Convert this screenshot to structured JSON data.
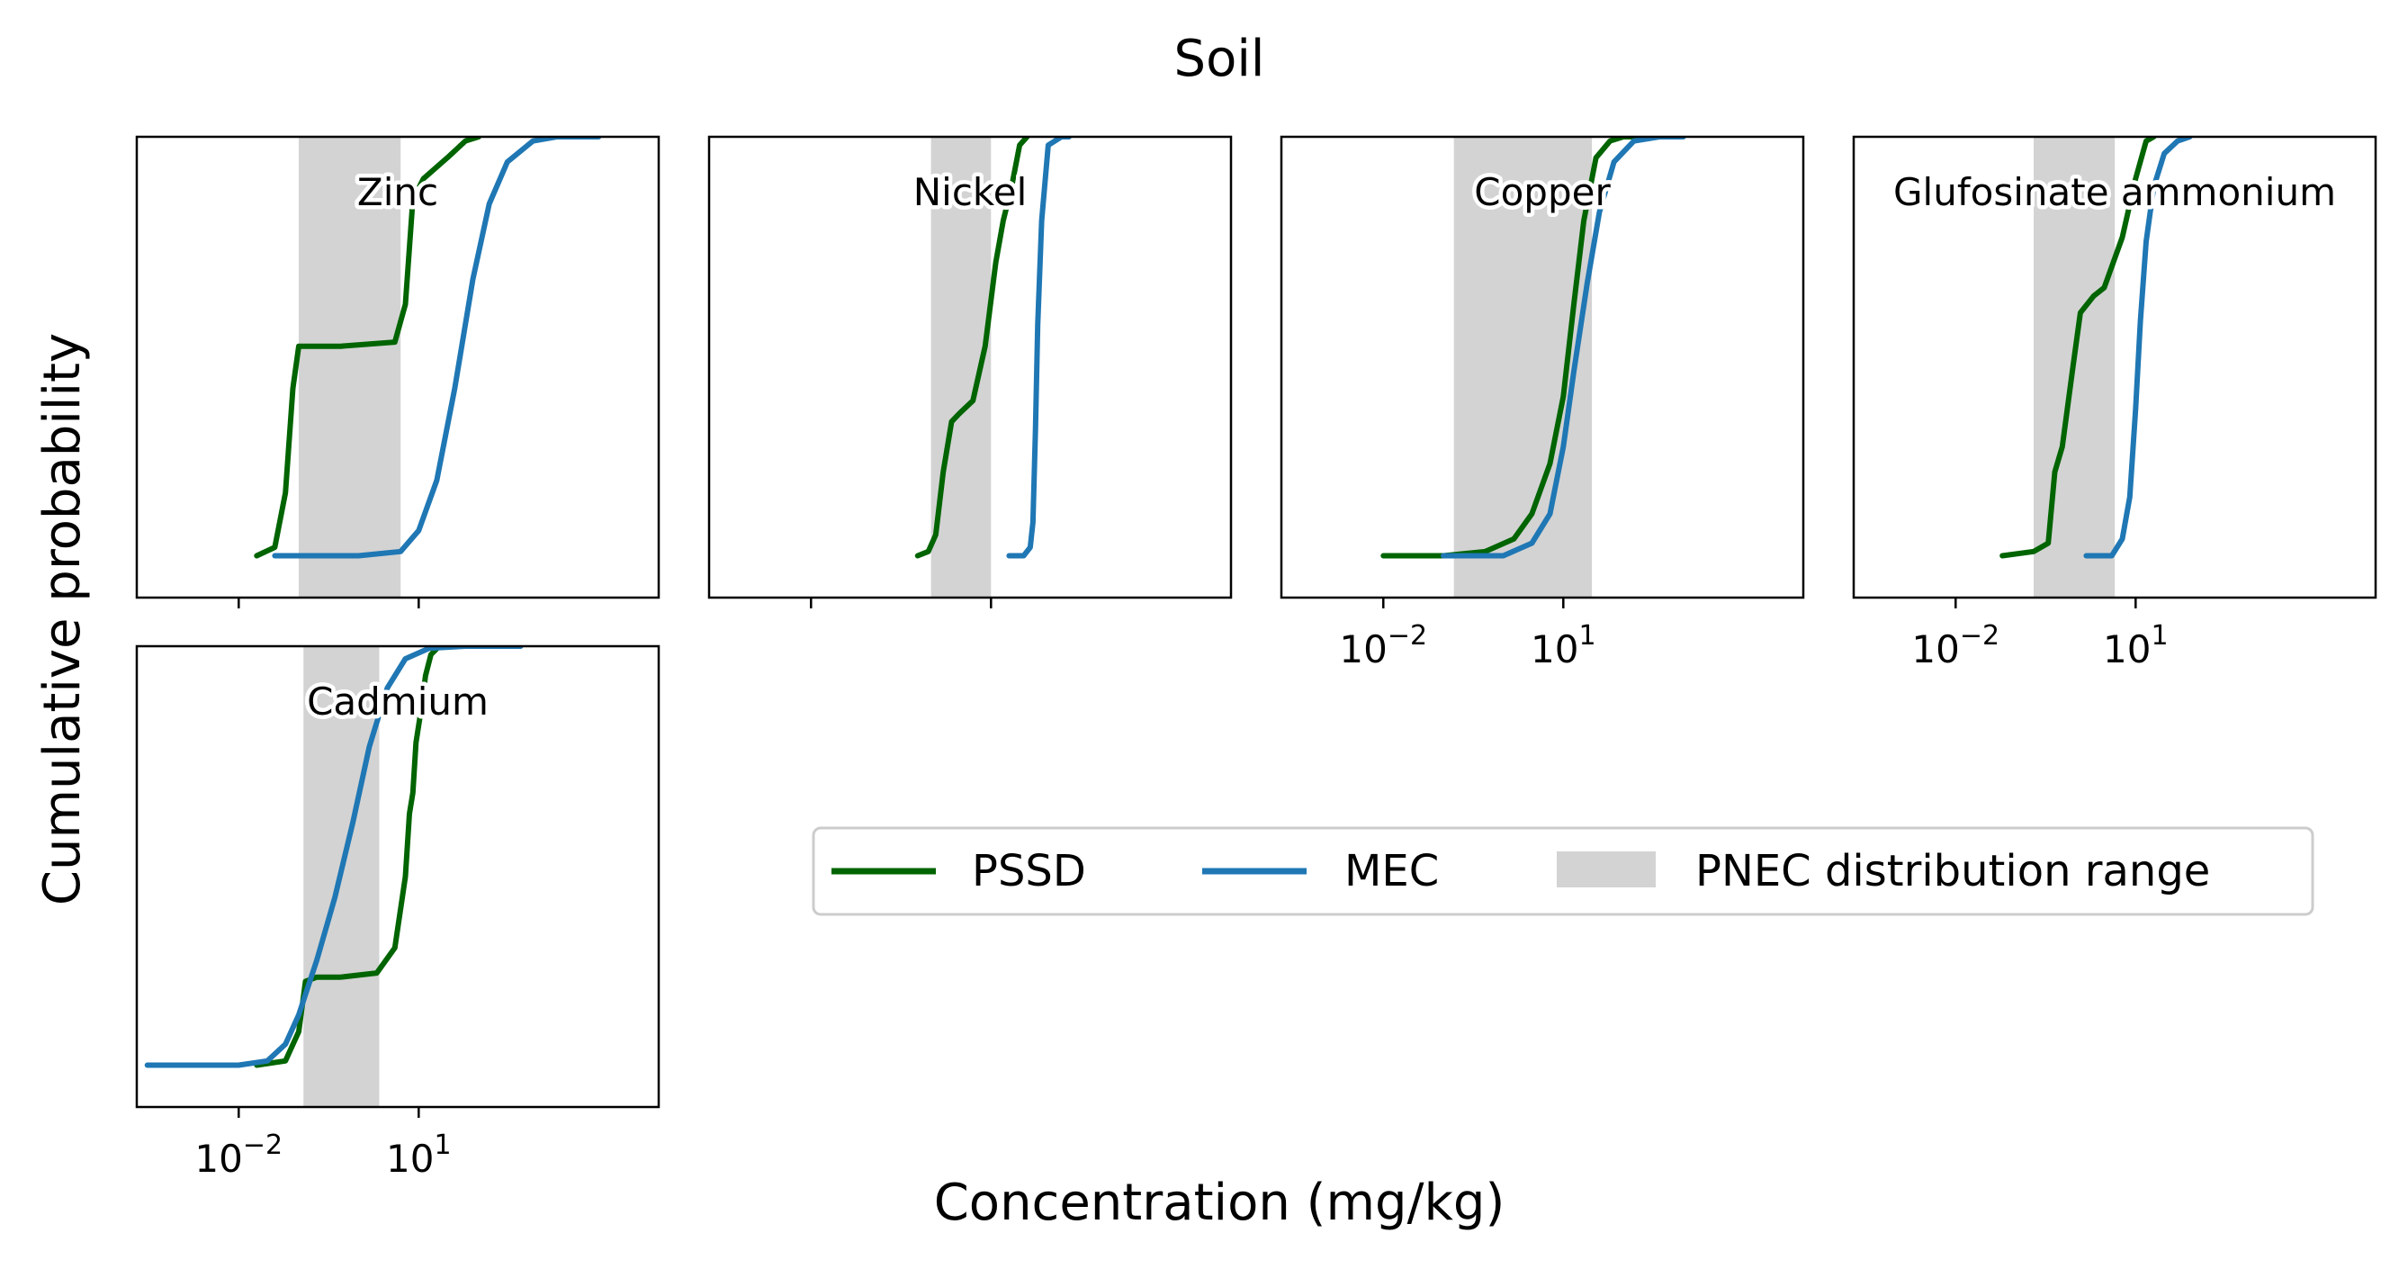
{
  "figure": {
    "title": "Soil",
    "ylabel": "Cumulative probability",
    "xlabel": "Concentration (mg/kg)"
  },
  "legend": {
    "items": [
      {
        "label": "PSSD",
        "color": "#006400",
        "kind": "line"
      },
      {
        "label": "MEC",
        "color": "#1f77b4",
        "kind": "line"
      },
      {
        "label": "PNEC distribution range",
        "color": "#d3d3d3",
        "kind": "patch"
      }
    ],
    "placement": "lower-center"
  },
  "chart_data": [
    {
      "type": "line",
      "title": "Zinc",
      "xscale": "log",
      "xlim": [
        0.0002,
        100000
      ],
      "ylim": [
        -0.1,
        1.0
      ],
      "xticks": [
        0.01,
        10
      ],
      "xticklabels": [
        "",
        ""
      ],
      "pnec_range": [
        0.1,
        5
      ],
      "series": [
        {
          "name": "PSSD",
          "color": "#006400",
          "x": [
            0.02,
            0.04,
            0.06,
            0.08,
            0.1,
            0.5,
            4,
            6,
            8,
            12,
            30,
            60,
            100
          ],
          "y": [
            0.0,
            0.02,
            0.15,
            0.4,
            0.5,
            0.5,
            0.51,
            0.6,
            0.85,
            0.9,
            0.95,
            0.99,
            1.0
          ]
        },
        {
          "name": "MEC",
          "color": "#1f77b4",
          "x": [
            0.04,
            1,
            5,
            10,
            20,
            40,
            80,
            150,
            300,
            800,
            2000,
            10000
          ],
          "y": [
            0.0,
            0.0,
            0.01,
            0.06,
            0.18,
            0.4,
            0.66,
            0.84,
            0.94,
            0.99,
            1.0,
            1.0
          ]
        }
      ]
    },
    {
      "type": "line",
      "title": "Nickel",
      "xscale": "log",
      "xlim": [
        0.0002,
        100000
      ],
      "ylim": [
        -0.1,
        1.0
      ],
      "xticks": [
        0.01,
        10
      ],
      "xticklabels": [
        "",
        ""
      ],
      "pnec_range": [
        1,
        10
      ],
      "series": [
        {
          "name": "PSSD",
          "color": "#006400",
          "x": [
            0.6,
            0.9,
            1.2,
            1.6,
            2.2,
            3,
            5,
            8,
            12,
            16,
            22,
            30,
            40
          ],
          "y": [
            0.0,
            0.01,
            0.05,
            0.2,
            0.32,
            0.34,
            0.37,
            0.5,
            0.7,
            0.8,
            0.88,
            0.98,
            1.0
          ]
        },
        {
          "name": "MEC",
          "color": "#1f77b4",
          "x": [
            20,
            35,
            45,
            50,
            55,
            60,
            70,
            90,
            150,
            200
          ],
          "y": [
            0.0,
            0.0,
            0.02,
            0.08,
            0.3,
            0.55,
            0.8,
            0.98,
            1.0,
            1.0
          ]
        }
      ]
    },
    {
      "type": "line",
      "title": "Copper",
      "xscale": "log",
      "xlim": [
        0.0002,
        100000
      ],
      "ylim": [
        -0.1,
        1.0
      ],
      "xticks": [
        0.01,
        10
      ],
      "xticklabels": [
        "10^-2",
        "10^1"
      ],
      "pnec_range": [
        0.15,
        30
      ],
      "series": [
        {
          "name": "PSSD",
          "color": "#006400",
          "x": [
            0.01,
            0.1,
            0.5,
            1.5,
            3,
            6,
            10,
            15,
            22,
            35,
            60,
            100,
            150
          ],
          "y": [
            0.0,
            0.0,
            0.01,
            0.04,
            0.1,
            0.22,
            0.38,
            0.6,
            0.8,
            0.95,
            0.99,
            1.0,
            1.0
          ]
        },
        {
          "name": "MEC",
          "color": "#1f77b4",
          "x": [
            0.1,
            1,
            3,
            6,
            10,
            15,
            25,
            40,
            70,
            150,
            400,
            1000
          ],
          "y": [
            0.0,
            0.0,
            0.03,
            0.1,
            0.26,
            0.44,
            0.65,
            0.82,
            0.94,
            0.99,
            1.0,
            1.0
          ]
        }
      ]
    },
    {
      "type": "line",
      "title": "Glufosinate ammonium",
      "xscale": "log",
      "xlim": [
        0.0002,
        100000
      ],
      "ylim": [
        -0.1,
        1.0
      ],
      "xticks": [
        0.01,
        10
      ],
      "xticklabels": [
        "10^-2",
        "10^1"
      ],
      "pnec_range": [
        0.2,
        4.5
      ],
      "series": [
        {
          "name": "PSSD",
          "color": "#006400",
          "x": [
            0.06,
            0.2,
            0.35,
            0.45,
            0.6,
            0.9,
            1.2,
            2,
            3,
            6,
            10,
            15,
            20
          ],
          "y": [
            0.0,
            0.01,
            0.03,
            0.2,
            0.26,
            0.45,
            0.58,
            0.62,
            0.64,
            0.76,
            0.9,
            0.99,
            1.0
          ]
        },
        {
          "name": "MEC",
          "color": "#1f77b4",
          "x": [
            1.5,
            4,
            6,
            8,
            10,
            12,
            15,
            20,
            30,
            50,
            80
          ],
          "y": [
            0.0,
            0.0,
            0.04,
            0.14,
            0.35,
            0.56,
            0.75,
            0.88,
            0.96,
            0.99,
            1.0
          ]
        }
      ]
    },
    {
      "type": "line",
      "title": "Cadmium",
      "xscale": "log",
      "xlim": [
        0.0002,
        100000
      ],
      "ylim": [
        -0.1,
        1.0
      ],
      "xticks": [
        0.01,
        10
      ],
      "xticklabels": [
        "10^-2",
        "10^1"
      ],
      "pnec_range": [
        0.12,
        2.2
      ],
      "series": [
        {
          "name": "PSSD",
          "color": "#006400",
          "x": [
            0.02,
            0.06,
            0.1,
            0.13,
            0.2,
            0.5,
            2,
            4,
            6,
            7,
            8,
            9,
            11,
            13,
            16,
            22,
            30
          ],
          "y": [
            0.0,
            0.01,
            0.08,
            0.2,
            0.21,
            0.21,
            0.22,
            0.28,
            0.45,
            0.6,
            0.65,
            0.77,
            0.85,
            0.93,
            0.98,
            1.0,
            1.0
          ]
        },
        {
          "name": "MEC",
          "color": "#1f77b4",
          "x": [
            0.0003,
            0.01,
            0.03,
            0.06,
            0.1,
            0.2,
            0.4,
            0.8,
            1.5,
            3,
            6,
            15,
            60,
            500
          ],
          "y": [
            0.0,
            0.0,
            0.01,
            0.05,
            0.12,
            0.25,
            0.4,
            0.58,
            0.76,
            0.9,
            0.97,
            0.995,
            1.0,
            1.0
          ]
        }
      ]
    }
  ]
}
